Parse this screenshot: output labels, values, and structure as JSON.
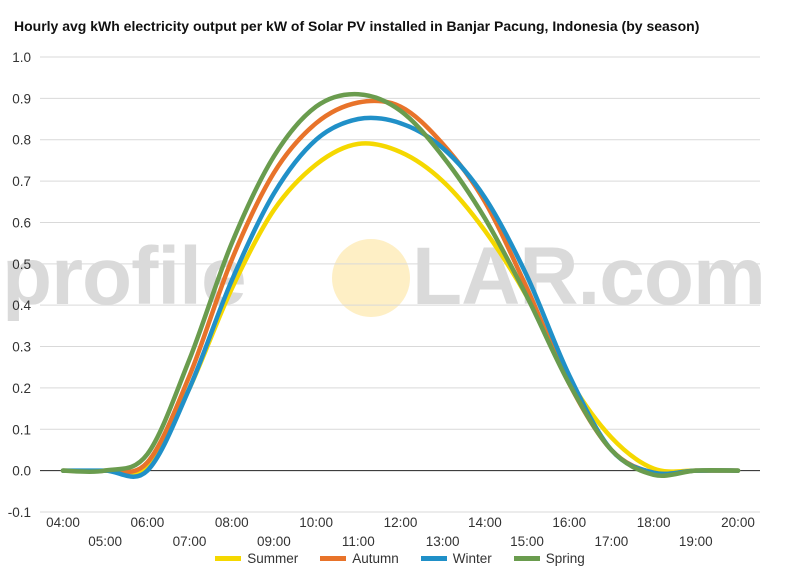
{
  "chart_data": {
    "type": "line",
    "title": "Hourly avg kWh electricity output per kW of Solar PV installed in Banjar Pacung, Indonesia (by season)",
    "xlabel": "",
    "ylabel": "",
    "ylim": [
      -0.1,
      1.0
    ],
    "yticks": [
      "1.0",
      "0.9",
      "0.8",
      "0.7",
      "0.6",
      "0.5",
      "0.4",
      "0.3",
      "0.2",
      "0.1",
      "0.0",
      "-0.1"
    ],
    "x": [
      "04:00",
      "05:00",
      "06:00",
      "07:00",
      "08:00",
      "09:00",
      "10:00",
      "11:00",
      "12:00",
      "13:00",
      "14:00",
      "15:00",
      "16:00",
      "17:00",
      "18:00",
      "19:00",
      "20:00"
    ],
    "grid": true,
    "legend_position": "bottom",
    "series": [
      {
        "name": "Summer",
        "color": "#f5d800",
        "values": [
          0,
          0,
          0.01,
          0.2,
          0.44,
          0.63,
          0.74,
          0.79,
          0.77,
          0.7,
          0.58,
          0.42,
          0.22,
          0.08,
          0.005,
          0,
          0
        ]
      },
      {
        "name": "Autumn",
        "color": "#e8732a",
        "values": [
          0,
          0,
          0.02,
          0.23,
          0.51,
          0.72,
          0.84,
          0.89,
          0.88,
          0.79,
          0.65,
          0.44,
          0.21,
          0.05,
          -0.005,
          0,
          0
        ]
      },
      {
        "name": "Winter",
        "color": "#2090c8",
        "values": [
          0,
          0,
          0.0,
          0.2,
          0.46,
          0.67,
          0.8,
          0.85,
          0.84,
          0.78,
          0.66,
          0.47,
          0.23,
          0.05,
          -0.005,
          0,
          0
        ]
      },
      {
        "name": "Spring",
        "color": "#6a9c4e",
        "values": [
          0,
          0,
          0.04,
          0.27,
          0.55,
          0.76,
          0.88,
          0.91,
          0.87,
          0.76,
          0.61,
          0.42,
          0.21,
          0.05,
          -0.01,
          0,
          0
        ]
      }
    ]
  },
  "watermark": {
    "left": "profile",
    "right": "LAR.com"
  }
}
